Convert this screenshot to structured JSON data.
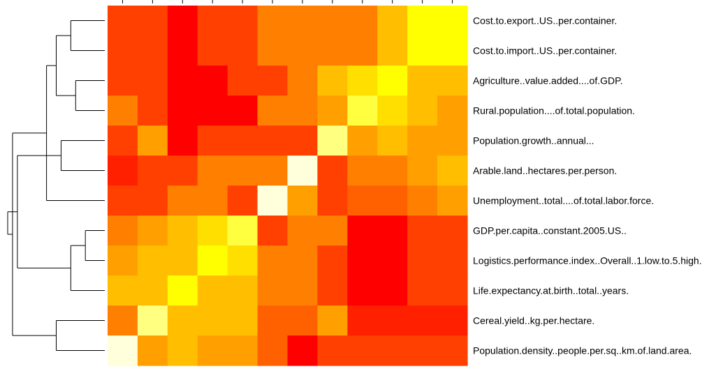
{
  "chart_data": {
    "type": "heatmap",
    "title": "",
    "rows": [
      "Cost.to.export..US..per.container.",
      "Cost.to.import..US..per.container.",
      "Agriculture..value.added....of.GDP.",
      "Rural.population....of.total.population.",
      "Population.growth..annual...",
      "Arable.land..hectares.per.person.",
      "Unemployment..total....of.total.labor.force.",
      "GDP.per.capita..constant.2005.US..",
      "Logistics.performance.index..Overall..1.low.to.5.high.",
      "Life.expectancy.at.birth..total..years.",
      "Cereal.yield..kg.per.hectare.",
      "Population.density..people.per.sq..km.of.land.area."
    ],
    "row_dendrogram": true,
    "column_tick_count": 12,
    "color_scale": [
      "#FF0000",
      "#FF4000",
      "#FF8000",
      "#FFBF00",
      "#FFFF00",
      "#FFFF80",
      "#FFFFDC"
    ],
    "values": [
      [
        1,
        1,
        0,
        1,
        1,
        2,
        2,
        2,
        2,
        3,
        4,
        4
      ],
      [
        1,
        1,
        0,
        1,
        1,
        2,
        2,
        2,
        2,
        3,
        4,
        4
      ],
      [
        1,
        1,
        0,
        0,
        1,
        1,
        2,
        3,
        3.5,
        4,
        3,
        3
      ],
      [
        2,
        1,
        0,
        0,
        0,
        2,
        2,
        2.5,
        4.5,
        3.5,
        3,
        2.5
      ],
      [
        1,
        2.5,
        0,
        1,
        1,
        1,
        1,
        5,
        2.5,
        3,
        2.5,
        2.5
      ],
      [
        0.5,
        1,
        1,
        2,
        2,
        2,
        6,
        1,
        2,
        2,
        2.5,
        3
      ],
      [
        1,
        1,
        2,
        2,
        1,
        6,
        2.5,
        1,
        1.5,
        1.5,
        2,
        2.5
      ],
      [
        2,
        2.5,
        3,
        3.5,
        4.5,
        1,
        2,
        2,
        0,
        0,
        1,
        1
      ],
      [
        2.5,
        3,
        3,
        4,
        3.5,
        2,
        2,
        1,
        0,
        0,
        1,
        1
      ],
      [
        3,
        3,
        4,
        3,
        3,
        2,
        2,
        1,
        0,
        0,
        1,
        1
      ],
      [
        2,
        5,
        3,
        3,
        3,
        1.5,
        1.5,
        2.5,
        0.5,
        0.5,
        0.5,
        0.5
      ],
      [
        6,
        2.5,
        3,
        2.5,
        2.5,
        1.5,
        0,
        1,
        1,
        1,
        1,
        1
      ]
    ],
    "dendrogram_merges": [
      [
        0,
        1,
        0.35
      ],
      [
        2,
        3,
        0.3
      ],
      [
        4,
        5,
        0.45
      ],
      [
        7,
        8,
        0.2
      ],
      [
        -4,
        9,
        0.35
      ],
      [
        -1,
        -2,
        0.5
      ],
      [
        10,
        11,
        0.5
      ],
      [
        -6,
        6,
        0.6
      ],
      [
        -3,
        -5,
        0.9
      ],
      [
        -7,
        -8,
        0.95
      ],
      [
        -9,
        -10,
        1.0
      ]
    ]
  }
}
